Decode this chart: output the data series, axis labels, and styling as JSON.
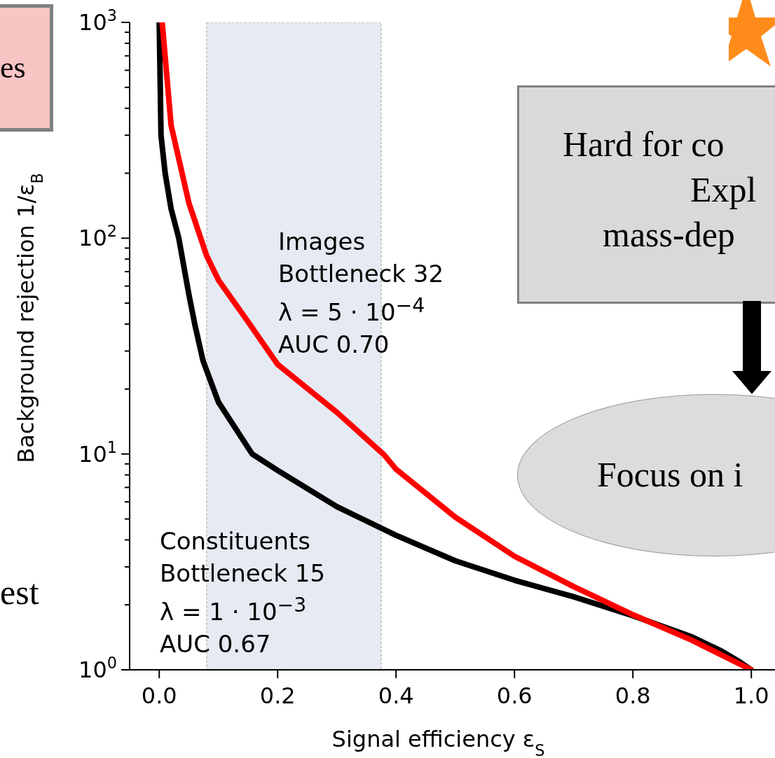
{
  "chart_data": {
    "type": "line",
    "xlabel": "Signal efficiency ε$_{S}$",
    "ylabel": "Background rejection 1/ε$_{B}$",
    "log": "y",
    "marker": "none",
    "line_style": "solid",
    "xlim": [
      -0.05,
      1.04
    ],
    "ylim": [
      1,
      1000
    ],
    "xticks": [
      {
        "value": 0,
        "label": "0.0"
      },
      {
        "value": 0.2,
        "label": "0.2"
      },
      {
        "value": 0.4,
        "label": "0.4"
      },
      {
        "value": 0.6,
        "label": "0.6"
      },
      {
        "value": 0.8,
        "label": "0.8"
      },
      {
        "value": 1,
        "label": "1.0"
      }
    ],
    "yticks": [
      {
        "value": 1,
        "label": "10$^{0}$"
      },
      {
        "value": 2,
        "label": null
      },
      {
        "value": 3,
        "label": null
      },
      {
        "value": 4,
        "label": null
      },
      {
        "value": 5,
        "label": null
      },
      {
        "value": 6,
        "label": null
      },
      {
        "value": 7,
        "label": null
      },
      {
        "value": 8,
        "label": null
      },
      {
        "value": 9,
        "label": null
      },
      {
        "value": 10,
        "label": "10$^{1}$"
      },
      {
        "value": 20,
        "label": null
      },
      {
        "value": 30,
        "label": null
      },
      {
        "value": 40,
        "label": null
      },
      {
        "value": 50,
        "label": null
      },
      {
        "value": 60,
        "label": null
      },
      {
        "value": 70,
        "label": null
      },
      {
        "value": 80,
        "label": null
      },
      {
        "value": 90,
        "label": null
      },
      {
        "value": 100,
        "label": "10$^{2}$"
      },
      {
        "value": 200,
        "label": null
      },
      {
        "value": 300,
        "label": null
      },
      {
        "value": 400,
        "label": null
      },
      {
        "value": 500,
        "label": null
      },
      {
        "value": 600,
        "label": null
      },
      {
        "value": 700,
        "label": null
      },
      {
        "value": 800,
        "label": null
      },
      {
        "value": 900,
        "label": null
      },
      {
        "value": 1000,
        "label": "10$^{3}$"
      }
    ],
    "bands": [
      {
        "axis": "x",
        "from": 0.08,
        "to": 0.375,
        "color": "#e6eaf2"
      }
    ],
    "series": [
      {
        "color": "#000000",
        "x": [
          0,
          0.003,
          0.01,
          0.02,
          0.033,
          0.05,
          0.06,
          0.074,
          0.1,
          0.15,
          0.157,
          0.2,
          0.3,
          0.4,
          0.5,
          0.6,
          0.7,
          0.8,
          0.9,
          0.95,
          0.98,
          1.0
        ],
        "values": [
          1000,
          300,
          200,
          137,
          100,
          55,
          40,
          27,
          17.4,
          10.7,
          10,
          8.4,
          5.7,
          4.2,
          3.2,
          2.6,
          2.18,
          1.78,
          1.42,
          1.22,
          1.09,
          1.0
        ]
      },
      {
        "color": "#ff0000",
        "x": [
          0.005,
          0.02,
          0.05,
          0.08,
          0.1,
          0.15,
          0.2,
          0.3,
          0.38,
          0.4,
          0.5,
          0.6,
          0.7,
          0.73,
          0.8,
          0.9,
          1.0
        ],
        "values": [
          1000,
          334,
          146,
          83,
          64,
          41,
          26,
          15.6,
          9.9,
          8.5,
          5.1,
          3.36,
          2.43,
          2.22,
          1.8,
          1.37,
          1.0
        ]
      }
    ],
    "annotations": [
      "Images\nBottleneck 32\nλ = 5 · 10$^{−4}$\nAUC 0.70",
      "Constituents\nBottleneck 15\nλ = 1 · 10$^{−3}$\nAUC 0.67",
      "es",
      "est",
      "Hard for co",
      "Expl",
      "mass-dep",
      "Focus on i"
    ]
  }
}
